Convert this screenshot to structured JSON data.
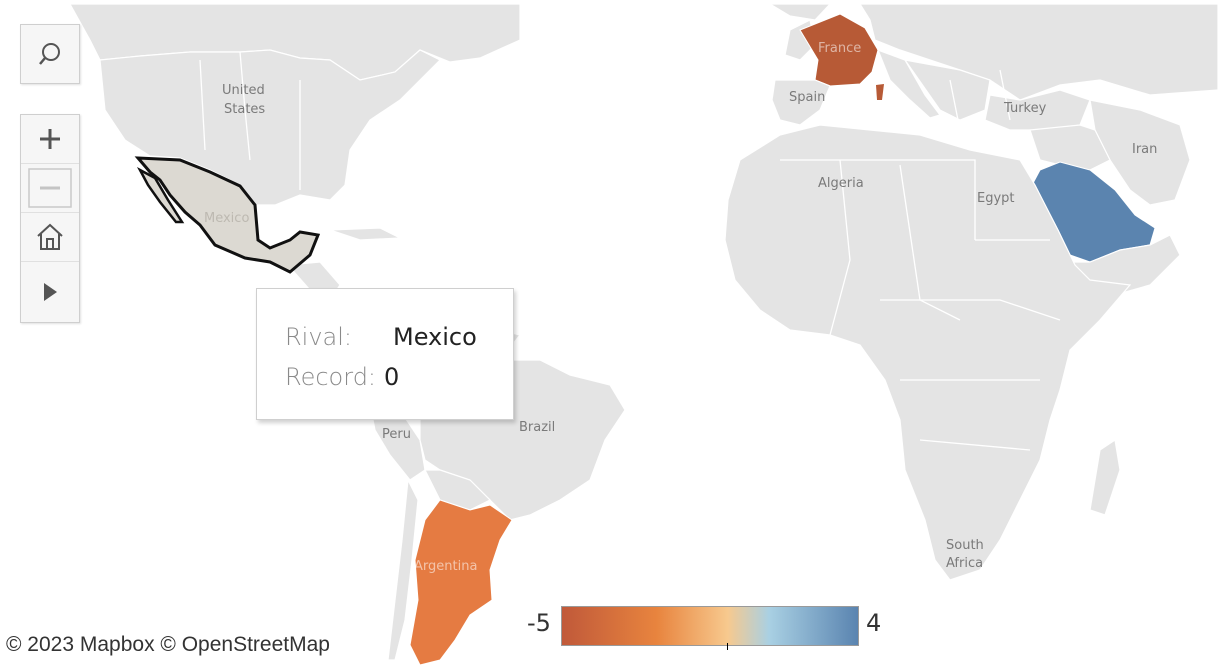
{
  "map": {
    "countries": [
      {
        "id": "united-states",
        "label": "United\nStates",
        "record": null
      },
      {
        "id": "mexico",
        "label": "Mexico",
        "record": 0,
        "selected": true
      },
      {
        "id": "peru",
        "label": "Peru",
        "record": null
      },
      {
        "id": "brazil",
        "label": "Brazil",
        "record": null
      },
      {
        "id": "argentina",
        "label": "Argentina",
        "record": -3
      },
      {
        "id": "france",
        "label": "France",
        "record": -5
      },
      {
        "id": "spain",
        "label": "Spain",
        "record": null
      },
      {
        "id": "turkey",
        "label": "Turkey",
        "record": null
      },
      {
        "id": "iran",
        "label": "Iran",
        "record": null
      },
      {
        "id": "algeria",
        "label": "Algeria",
        "record": null
      },
      {
        "id": "egypt",
        "label": "Egypt",
        "record": null
      },
      {
        "id": "saudi-arabia",
        "label": "",
        "record": 4
      },
      {
        "id": "south-africa",
        "label": "South\nAfrica",
        "record": null
      }
    ],
    "colors": {
      "land": "#e4e4e4",
      "selected_fill": "#dcd9d2",
      "selected_outline": "#111111",
      "scale": [
        "#c0593a",
        "#e8843e",
        "#f7c98e",
        "#a9d0e3",
        "#5a84b0"
      ]
    }
  },
  "labels": {
    "united_states_1": "United",
    "united_states_2": "States",
    "mexico": "Mexico",
    "peru": "Peru",
    "brazil": "Brazil",
    "argentina": "Argentina",
    "france": "France",
    "spain": "Spain",
    "turkey": "Turkey",
    "iran": "Iran",
    "algeria": "Algeria",
    "egypt": "Egypt",
    "south_africa_1": "South",
    "south_africa_2": "Africa"
  },
  "toolbar": {
    "search_icon": "search-icon",
    "zoom_in_icon": "plus-icon",
    "zoom_out_icon": "minus-icon",
    "home_icon": "home-icon",
    "pan_icon": "play-icon"
  },
  "tooltip": {
    "rival_key": "Rival:",
    "rival_value": "Mexico",
    "record_key": "Record:",
    "record_value": "0"
  },
  "legend": {
    "min": "-5",
    "max": "4",
    "marker_value": 0
  },
  "attribution": "© 2023 Mapbox  © OpenStreetMap"
}
